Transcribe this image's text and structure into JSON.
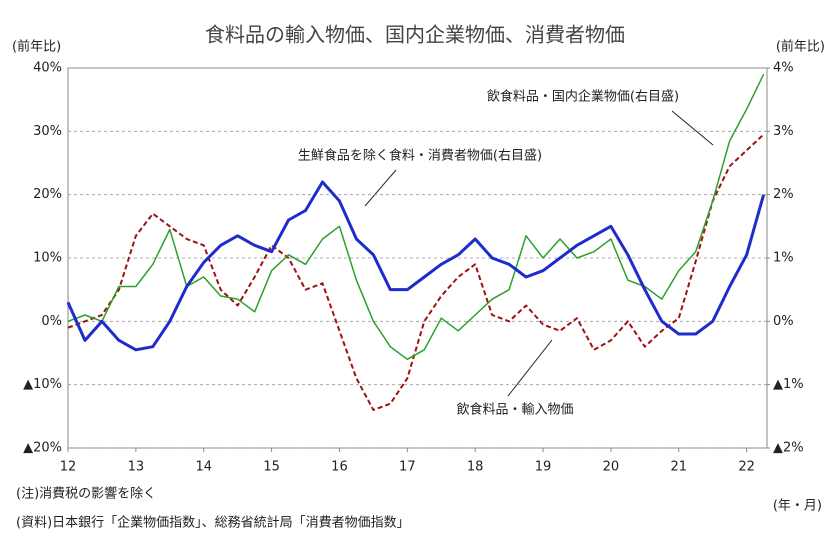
{
  "chart_data": {
    "type": "line",
    "title": "食料品の輸入物価、国内企業物価、消費者物価",
    "y_label": "(前年比)",
    "y2_label": "(前年比)",
    "x_label": "(年・月)",
    "notes": [
      "(注)消費税の影響を除く",
      "(資料)日本銀行「企業物価指数」、総務省統計局「消費者物価指数」"
    ],
    "grid": true,
    "xlim": [
      12,
      22.3
    ],
    "xticks": [
      12,
      13,
      14,
      15,
      16,
      17,
      18,
      19,
      20,
      21,
      22
    ],
    "ylim": [
      -20,
      40
    ],
    "yticks": [
      {
        "value": -20,
        "label": "▲20%"
      },
      {
        "value": -10,
        "label": "▲10%"
      },
      {
        "value": 0,
        "label": "0%"
      },
      {
        "value": 10,
        "label": "10%"
      },
      {
        "value": 20,
        "label": "20%"
      },
      {
        "value": 30,
        "label": "30%"
      },
      {
        "value": 40,
        "label": "40%"
      }
    ],
    "y2lim": [
      -2,
      4
    ],
    "y2ticks": [
      {
        "value": -2,
        "label": "▲2%"
      },
      {
        "value": -1,
        "label": "▲1%"
      },
      {
        "value": 0,
        "label": "0%"
      },
      {
        "value": 1,
        "label": "1%"
      },
      {
        "value": 2,
        "label": "2%"
      },
      {
        "value": 3,
        "label": "3%"
      },
      {
        "value": 4,
        "label": "4%"
      }
    ],
    "x": [
      12,
      12.25,
      12.5,
      12.75,
      13,
      13.25,
      13.5,
      13.75,
      14,
      14.25,
      14.5,
      14.75,
      15,
      15.25,
      15.5,
      15.75,
      16,
      16.25,
      16.5,
      16.75,
      17,
      17.25,
      17.5,
      17.75,
      18,
      18.25,
      18.5,
      18.75,
      19,
      19.25,
      19.5,
      19.75,
      20,
      20.25,
      20.5,
      20.75,
      21,
      21.25,
      21.5,
      21.75,
      22,
      22.25
    ],
    "series": [
      {
        "name": "飲食料品・輸入物価",
        "color": "#a01010",
        "dash": true,
        "axis": "y",
        "values": [
          -1,
          0,
          1,
          5,
          13.5,
          17,
          15,
          13,
          12,
          5,
          2.5,
          7,
          12,
          10,
          5,
          6,
          -1.5,
          -9,
          -14,
          -13,
          -9,
          0,
          4,
          7,
          9,
          1,
          0,
          2.5,
          -0.5,
          -1.5,
          0.5,
          -4.5,
          -3,
          0,
          -4,
          -1.5,
          0.5,
          9.5,
          19,
          24.5,
          27,
          29.5
        ]
      },
      {
        "name": "生鮮食品を除く食料・消費者物価(右目盛)",
        "color": "#1f2ccc",
        "axis": "y2",
        "values": [
          0.3,
          -0.3,
          0,
          -0.3,
          -0.45,
          -0.4,
          0,
          0.55,
          0.93,
          1.2,
          1.35,
          1.2,
          1.1,
          1.6,
          1.75,
          2.2,
          1.9,
          1.3,
          1.05,
          0.5,
          0.5,
          0.7,
          0.9,
          1.05,
          1.3,
          1,
          0.9,
          0.7,
          0.8,
          1,
          1.2,
          1.35,
          1.5,
          1.05,
          0.5,
          0,
          -0.2,
          -0.2,
          0,
          0.55,
          1.05,
          2
        ]
      },
      {
        "name": "飲食料品・国内企業物価(右目盛)",
        "color": "#2ca02c",
        "axis": "y2",
        "values": [
          0,
          0.1,
          0,
          0.55,
          0.55,
          0.9,
          1.45,
          0.55,
          0.7,
          0.4,
          0.35,
          0.15,
          0.8,
          1.05,
          0.9,
          1.3,
          1.5,
          0.65,
          0,
          -0.4,
          -0.6,
          -0.45,
          0.05,
          -0.15,
          0.1,
          0.35,
          0.5,
          1.35,
          1,
          1.3,
          1,
          1.1,
          1.3,
          0.65,
          0.55,
          0.35,
          0.8,
          1.1,
          1.9,
          2.85,
          3.35,
          3.9
        ]
      }
    ]
  }
}
